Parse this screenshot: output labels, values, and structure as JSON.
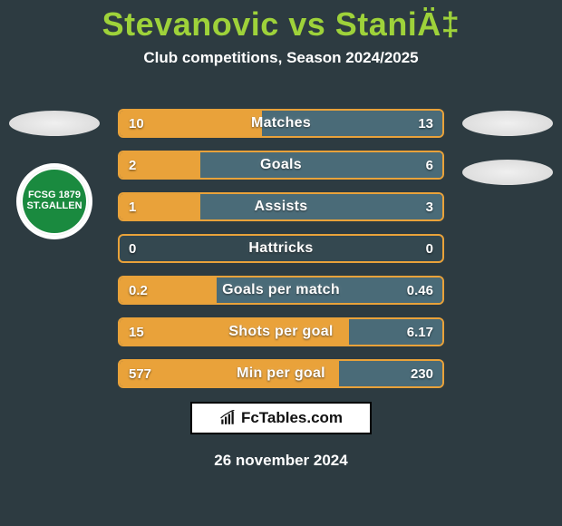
{
  "background_color": "#2d3b41",
  "title_color": "#9ed23a",
  "subtitle_color": "#ffffff",
  "date_color": "#ffffff",
  "title": "Stevanovic vs StaniÄ‡",
  "subtitle": "Club competitions, Season 2024/2025",
  "date": "26 november 2024",
  "logo_text": "FcTables.com",
  "team_left_badge_text": "FCSG\n1879\nST.GALLEN",
  "bars": {
    "track_color": "#344850",
    "left_fill_color": "#e9a23a",
    "right_fill_color": "#4a6b78",
    "text_color": "#ffffff",
    "rows": [
      {
        "label": "Matches",
        "left_value": "10",
        "right_value": "13",
        "left_frac": 0.44,
        "right_frac": 0.56
      },
      {
        "label": "Goals",
        "left_value": "2",
        "right_value": "6",
        "left_frac": 0.25,
        "right_frac": 0.75
      },
      {
        "label": "Assists",
        "left_value": "1",
        "right_value": "3",
        "left_frac": 0.25,
        "right_frac": 0.75
      },
      {
        "label": "Hattricks",
        "left_value": "0",
        "right_value": "0",
        "left_frac": 0.0,
        "right_frac": 0.0
      },
      {
        "label": "Goals per match",
        "left_value": "0.2",
        "right_value": "0.46",
        "left_frac": 0.3,
        "right_frac": 0.7
      },
      {
        "label": "Shots per goal",
        "left_value": "15",
        "right_value": "6.17",
        "left_frac": 0.71,
        "right_frac": 0.29
      },
      {
        "label": "Min per goal",
        "left_value": "577",
        "right_value": "230",
        "left_frac": 0.68,
        "right_frac": 0.32
      }
    ]
  }
}
